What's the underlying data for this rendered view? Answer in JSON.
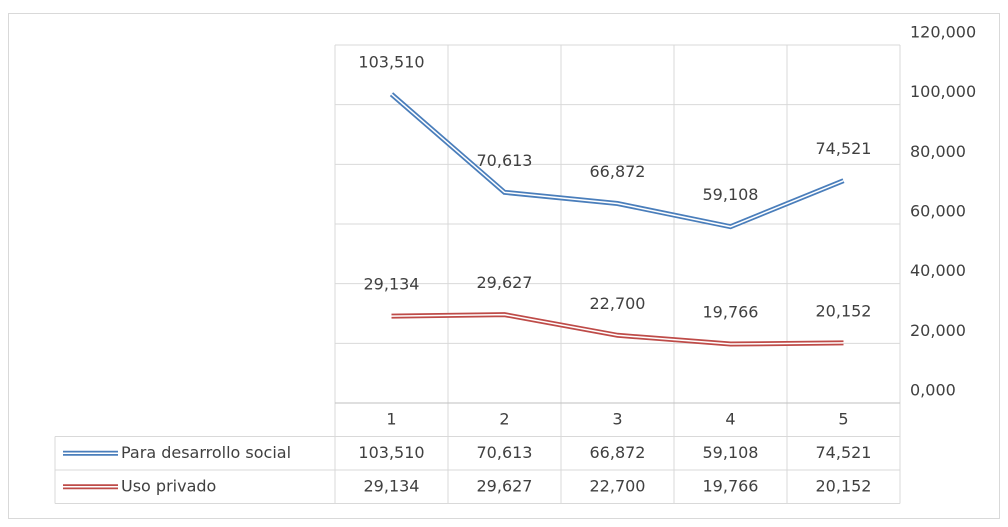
{
  "chart_data": {
    "type": "line",
    "categories": [
      "1",
      "2",
      "3",
      "4",
      "5"
    ],
    "series": [
      {
        "name": "Para desarrollo social",
        "color": "#4a7ebb",
        "values": [
          103510,
          70613,
          66872,
          59108,
          74521
        ],
        "value_labels": [
          "103,510",
          "70,613",
          "66,872",
          "59,108",
          "74,521"
        ]
      },
      {
        "name": "Uso privado",
        "color": "#be4b48",
        "values": [
          29134,
          29627,
          22700,
          19766,
          20152
        ],
        "value_labels": [
          "29,134",
          "29,627",
          "22,700",
          "19,766",
          "20,152"
        ]
      }
    ],
    "ylim": [
      0,
      120000
    ],
    "yticks": [
      {
        "value": 0,
        "label": "0,000"
      },
      {
        "value": 20000,
        "label": "20,000"
      },
      {
        "value": 40000,
        "label": "40,000"
      },
      {
        "value": 60000,
        "label": "60,000"
      },
      {
        "value": 80000,
        "label": "80,000"
      },
      {
        "value": 100000,
        "label": "100,000"
      },
      {
        "value": 120000,
        "label": "120,000"
      }
    ],
    "grid": true
  }
}
